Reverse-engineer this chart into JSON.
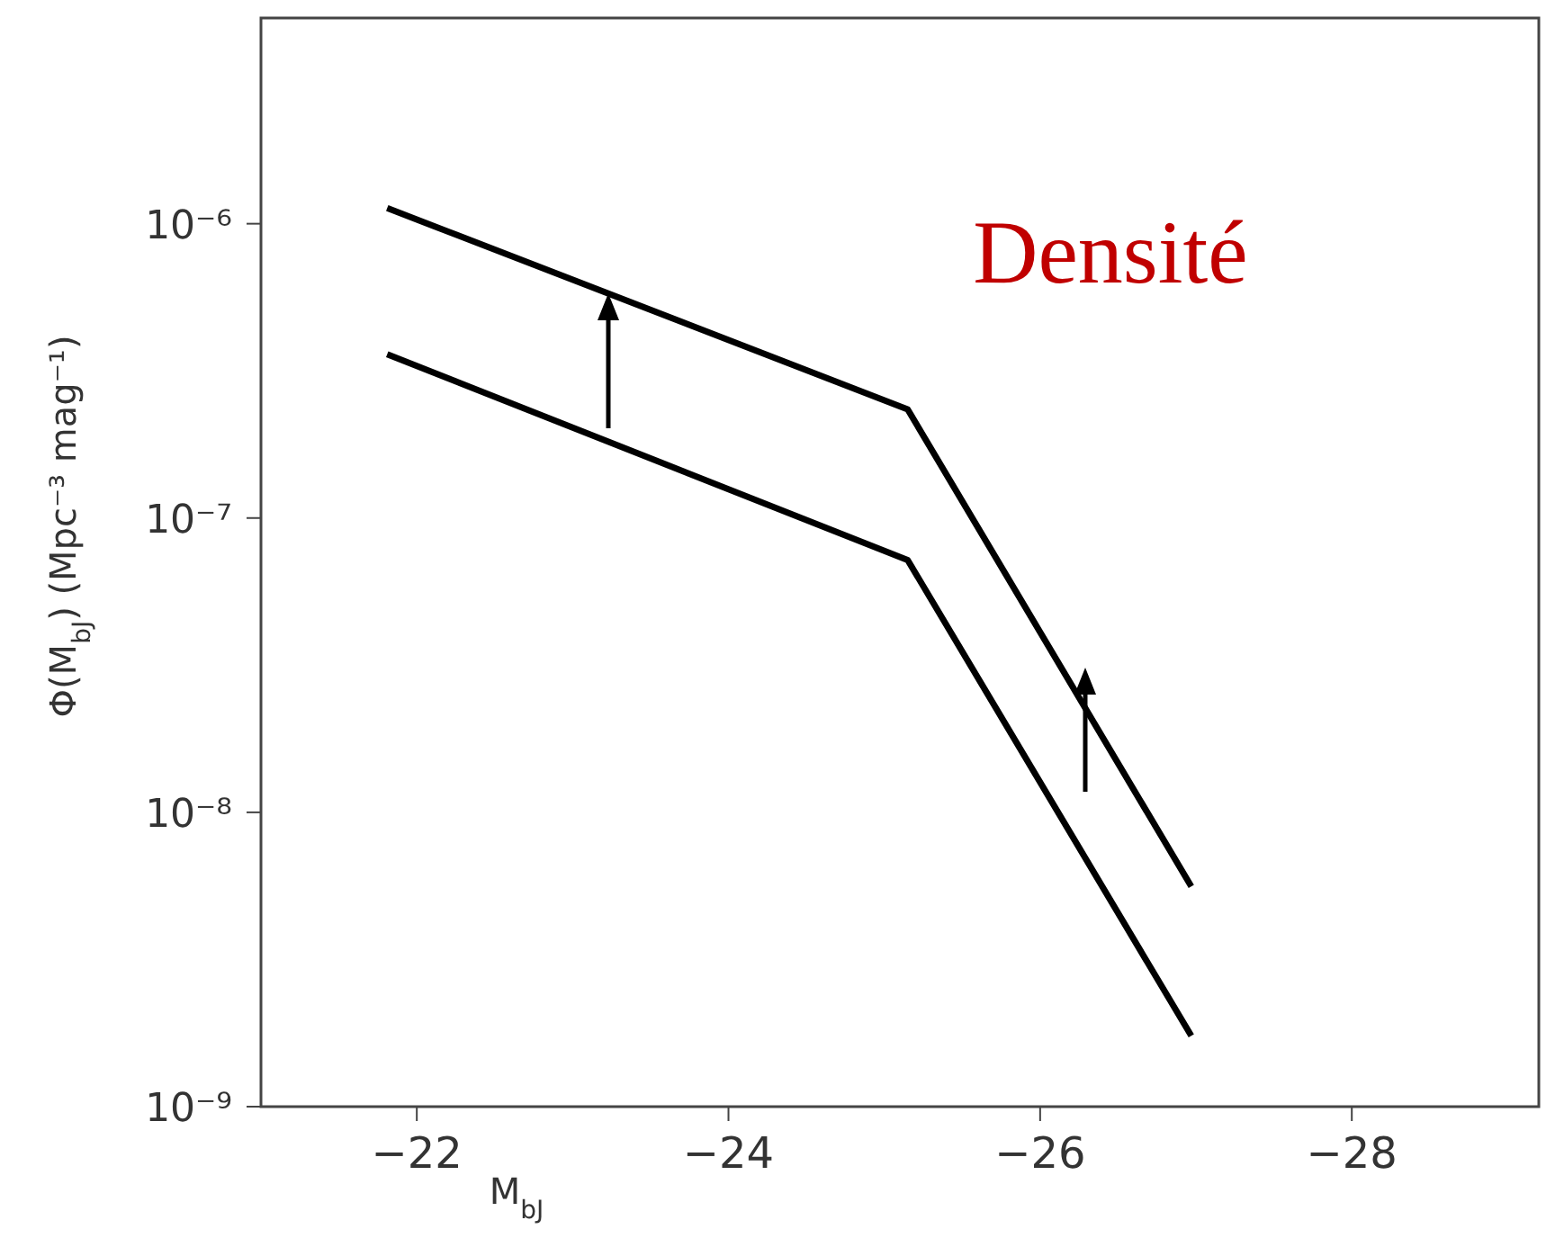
{
  "chart_data": {
    "type": "line",
    "xlabel": "M$_{bJ}$",
    "ylabel": "Φ(M$_{bJ}$) (Mpc⁻³ mag⁻¹)",
    "annotations": [
      "Densité"
    ],
    "series": [
      {
        "color": "#000000",
        "x": [
          -21.81,
          -25.15,
          -26.97
        ],
        "values": [
          1.13e-06,
          2.34e-07,
          5.6e-09
        ]
      },
      {
        "color": "#000000",
        "x": [
          -21.81,
          -25.15,
          -26.97
        ],
        "values": [
          3.6e-07,
          7.2e-08,
          1.74e-09
        ]
      }
    ],
    "xlim": [
      -21,
      -29.2
    ],
    "xticks": [
      -22,
      -24,
      -26,
      -28
    ],
    "ylim": [
      1e-09,
      5e-06
    ],
    "log": "y",
    "yticks": [
      {
        "value": 1e-09,
        "label": "10⁻⁹"
      },
      {
        "value": 1e-08,
        "label": "10⁻⁸"
      },
      {
        "value": 1e-07,
        "label": "10⁻⁷"
      },
      {
        "value": 1e-06,
        "label": "10⁻⁶"
      }
    ],
    "grid": false,
    "legend": false,
    "marker": "none",
    "line_style": "solid"
  }
}
